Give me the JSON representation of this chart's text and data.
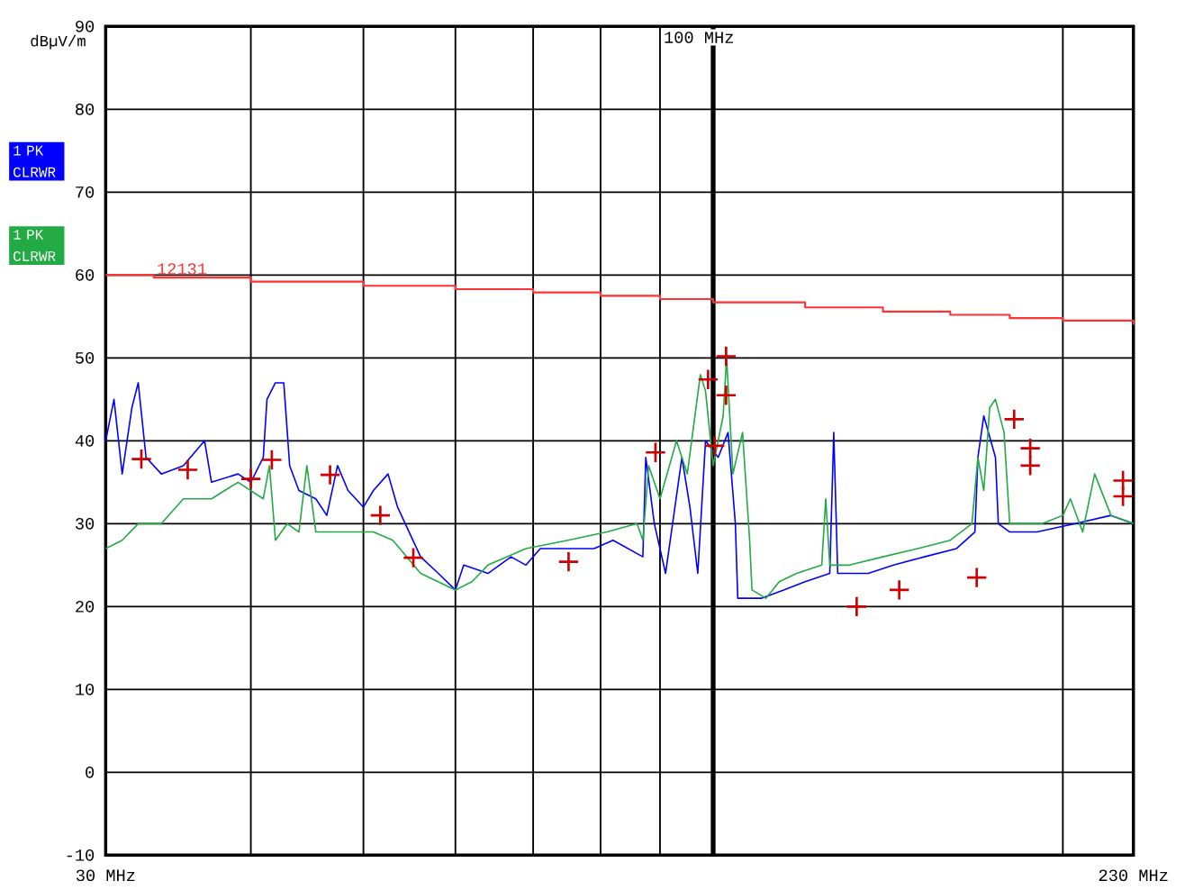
{
  "chart_data": {
    "type": "line",
    "ylabel": "dBµV/m",
    "log": "x",
    "grid": true,
    "legend": "left",
    "xlim": [
      30,
      230
    ],
    "ylim": [
      -10,
      90
    ],
    "xticks": [
      {
        "value": 30,
        "label": "30 MHz"
      },
      {
        "value": 40,
        "label": null
      },
      {
        "value": 50,
        "label": null
      },
      {
        "value": 60,
        "label": null
      },
      {
        "value": 70,
        "label": null
      },
      {
        "value": 80,
        "label": null
      },
      {
        "value": 90,
        "label": null
      },
      {
        "value": 200,
        "label": null
      },
      {
        "value": 230,
        "label": "230 MHz"
      }
    ],
    "yticks": [
      -10,
      0,
      10,
      20,
      30,
      40,
      50,
      60,
      70,
      80,
      90
    ],
    "ref_lines": [
      {
        "axis": "x",
        "value": 100,
        "label": "100 MHz",
        "color": "#000000"
      }
    ],
    "series": [
      {
        "name": "1 PK CLRWR",
        "color": "#0000ff",
        "x": [
          30,
          30.5,
          31,
          31.6,
          32,
          32.5,
          33.5,
          35,
          36.5,
          37,
          39,
          40,
          41,
          41.3,
          42,
          42.7,
          43.2,
          44,
          45.5,
          46.5,
          47.5,
          48.5,
          50,
          51,
          52.5,
          53.5,
          56,
          58,
          60,
          61,
          64,
          67,
          69,
          71,
          75,
          79,
          82,
          87,
          87.5,
          89,
          91,
          94,
          95.5,
          97,
          98.5,
          101,
          103,
          104.5,
          105,
          110,
          115,
          120,
          126,
          127,
          128,
          136,
          143,
          152,
          162,
          168,
          169,
          171,
          175,
          176,
          180,
          190,
          205,
          220,
          230
        ],
        "values": [
          40,
          45,
          36,
          44,
          47,
          38,
          36,
          37,
          40,
          35,
          36,
          35,
          38,
          45,
          47,
          47,
          37,
          34,
          33,
          31,
          37,
          34,
          32,
          34,
          36,
          32,
          26,
          24,
          22,
          25,
          24,
          26,
          25,
          27,
          27,
          27,
          28,
          26,
          38,
          30,
          24,
          38,
          32,
          24,
          40,
          38,
          41,
          30,
          21,
          21,
          22,
          23,
          24,
          41,
          24,
          24,
          25,
          26,
          27,
          29,
          38,
          43,
          38,
          30,
          29,
          29,
          30,
          31,
          30
        ]
      },
      {
        "name": "1 PK CLRWR",
        "color": "#22aa44",
        "x": [
          30,
          31,
          32,
          33.5,
          35,
          37,
          39,
          41,
          41.5,
          42,
          43,
          44,
          44.7,
          45.5,
          48,
          51,
          53,
          56,
          60,
          62,
          64,
          69,
          75,
          81,
          86,
          87,
          88,
          90,
          93,
          95,
          97.5,
          98.5,
          100,
          102,
          102.7,
          104,
          106,
          107.5,
          108,
          111,
          114,
          118,
          124,
          125,
          126,
          131,
          140,
          150,
          160,
          167,
          169,
          171,
          173,
          175,
          178,
          180,
          192,
          200,
          203,
          208,
          213,
          220,
          230
        ],
        "values": [
          27,
          28,
          30,
          30,
          33,
          33,
          35,
          33,
          37,
          28,
          30,
          29,
          37,
          29,
          29,
          29,
          28,
          24,
          22,
          23,
          25,
          27,
          28,
          29,
          30,
          28,
          37,
          33,
          40,
          36,
          48,
          46,
          37,
          43,
          50,
          36,
          41,
          28,
          22,
          21,
          23,
          24,
          25,
          33,
          25,
          25,
          26,
          27,
          28,
          30,
          38,
          34,
          44,
          45,
          41,
          30,
          30,
          31,
          33,
          29,
          36,
          31,
          30
        ]
      },
      {
        "name": "12131",
        "type": "step",
        "color": "#ff3333",
        "x": [
          30,
          33,
          40,
          50,
          60,
          70,
          80,
          90,
          100,
          120,
          140,
          160,
          180,
          200,
          230
        ],
        "values": [
          60,
          59.7,
          59.2,
          58.7,
          58.3,
          57.9,
          57.5,
          57.1,
          56.7,
          56.1,
          55.6,
          55.2,
          54.8,
          54.5,
          54
        ]
      },
      {
        "type": "scatter",
        "marker": "cross",
        "color": "#cc0000",
        "x": [
          32.2,
          35.3,
          40,
          41.7,
          46.8,
          51.7,
          55.2,
          75.1,
          89.2,
          99,
          102.6,
          102.6,
          100.3,
          132.9,
          144.6,
          168.6,
          181.6,
          187.5,
          187.5,
          225.3,
          225.3
        ],
        "values": [
          37.8,
          36.5,
          35.4,
          37.7,
          35.9,
          31,
          25.9,
          25.4,
          38.6,
          47.4,
          50.2,
          45.5,
          39.4,
          20,
          22,
          23.5,
          42.6,
          39.1,
          37,
          35.2,
          33.3
        ]
      }
    ]
  }
}
